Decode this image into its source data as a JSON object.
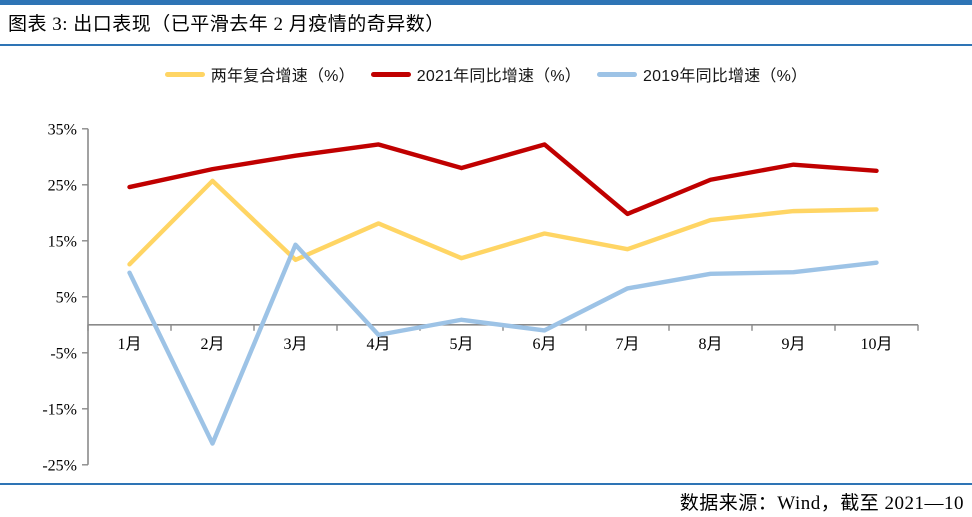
{
  "page": {
    "title": "图表 3: 出口表现（已平滑去年 2 月疫情的奇异数）",
    "source_note": "数据来源：Wind，截至 2021—10"
  },
  "colors": {
    "accent_blue_rule": "#2E74B5",
    "axis_gray": "#8A8A8A",
    "text_black": "#000000",
    "series_yellow": "#FFD564",
    "series_red": "#C00000",
    "series_blue": "#9DC3E6"
  },
  "chart_data": {
    "type": "line",
    "title": "出口表现（已平滑去年 2 月疫情的奇异数）",
    "categories": [
      "1月",
      "2月",
      "3月",
      "4月",
      "5月",
      "6月",
      "7月",
      "8月",
      "9月",
      "10月"
    ],
    "series": [
      {
        "name": "两年复合增速（%）",
        "color": "#FFD564",
        "values": [
          10.8,
          25.7,
          11.6,
          18.1,
          11.9,
          16.3,
          13.5,
          18.7,
          20.3,
          20.6
        ]
      },
      {
        "name": "2021年同比增速（%）",
        "color": "#C00000",
        "values": [
          24.6,
          27.8,
          30.2,
          32.2,
          28.0,
          32.2,
          19.8,
          25.9,
          28.6,
          27.5
        ]
      },
      {
        "name": "2019年同比增速（%）",
        "color": "#9DC3E6",
        "values": [
          9.3,
          -21.2,
          14.3,
          -1.8,
          0.9,
          -1.0,
          6.5,
          9.1,
          9.4,
          11.1
        ]
      }
    ],
    "xlabel": "",
    "ylabel": "",
    "ylim": [
      -25,
      35
    ],
    "yticks": [
      35,
      25,
      15,
      5,
      -5,
      -15,
      -25
    ],
    "ytick_suffix": "%",
    "grid": false,
    "legend_position": "top",
    "x_axis_at_zero": true
  }
}
